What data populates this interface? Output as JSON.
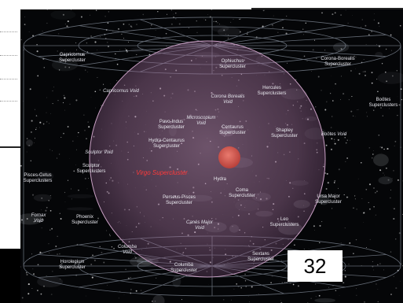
{
  "page_number": "32",
  "colors": {
    "sphere": "#b07aa8",
    "virgo": "#d2504a",
    "virgo_label": "#ff3a3a",
    "grid": "#8c95a3",
    "background": "#050608"
  },
  "labels": {
    "capricornus_supercluster": "Capricornus\nSupercluster",
    "ophiuchus_supercluster": "Ophiuchus\nSupercluster",
    "corona_borealis_supercluster": "Corona-Borealis\nSupercluster",
    "hercules_superclusters": "Hercules\nSuperclusters",
    "bootes_superclusters": "Boötes\nSuperclusters",
    "capricornus_void": "Capricornus Void",
    "corona_borealis_void": "Corona Borealis\nVoid",
    "microscopium_void": "Microscopium\nVoid",
    "pavo_indus_supercluster": "Pavo-Indus\nSupercluster",
    "centaurus_supercluster": "Centaurus\nSupercluster",
    "shapley_supercluster": "Shapley\nSupercluster",
    "bootes_void": "Boötes Void",
    "hydra_centaurus_supercluster": "Hydra-Centaurus\nSupercluster",
    "sculptor_void": "Sculptor Void",
    "sculptor_superclusters": "Sculptor\nSuperclusters",
    "virgo_supercluster": "Virgo Supercluster",
    "hydra": "Hydra",
    "coma_supercluster": "Coma\nSupercluster",
    "pisces_cetus_superclusters": "Pisces-Cetus\nSuperclusters",
    "perseus_pisces_supercluster": "Perseus-Pisces\nSupercluster",
    "ursa_major_supercluster": "Ursa Major\nSupercluster",
    "fornax_void": "Fornax\nVoid",
    "phoenix_supercluster": "Phoenix\nSupercluster",
    "canes_major_void": "Canes Major\nVoid",
    "leo_superclusters": "Leo\nSuperclusters",
    "columba_void": "Columba\nVoid",
    "sextans_supercluster": "Sextans\nSupercluster",
    "horologium_supercluster": "Horologium\nSupercluster",
    "columba_supercluster": "Columba\nSupercluster"
  }
}
